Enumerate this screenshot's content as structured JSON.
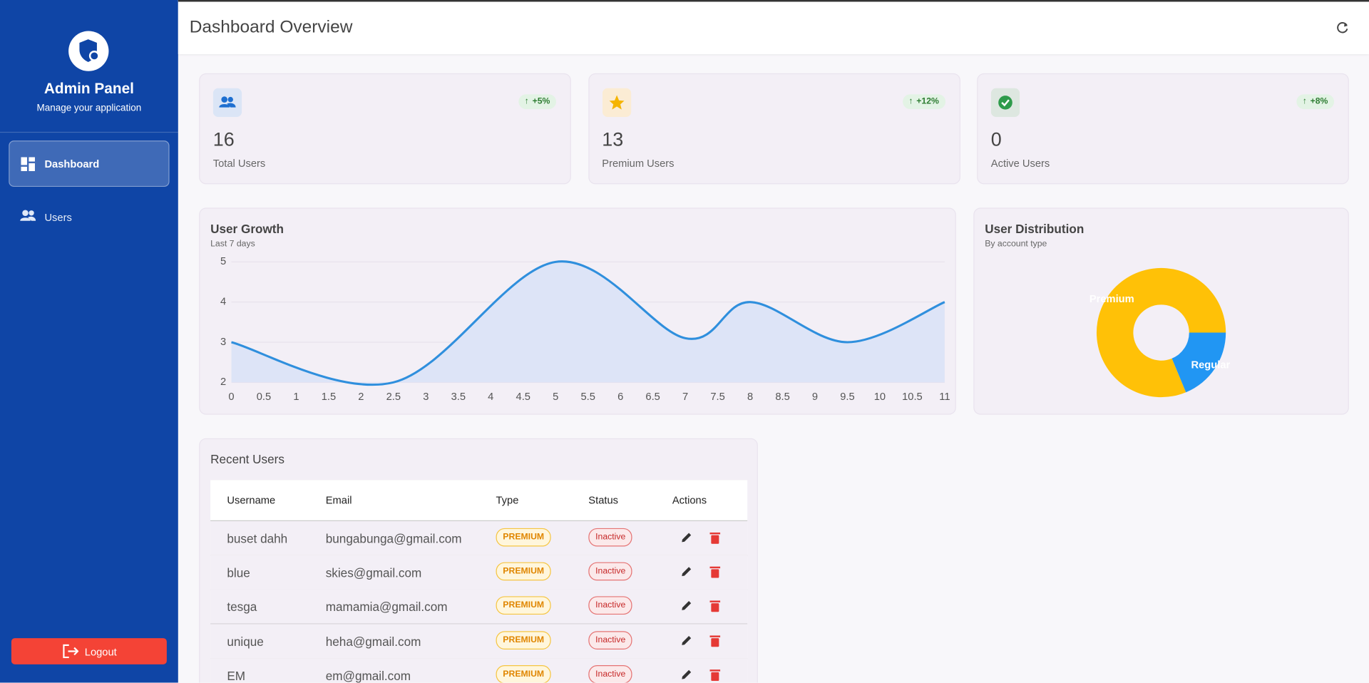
{
  "sidebar": {
    "title": "Admin Panel",
    "subtitle": "Manage your application",
    "nav": [
      "Dashboard",
      "Users"
    ],
    "logout": "Logout"
  },
  "header": {
    "title": "Dashboard Overview"
  },
  "stats": [
    {
      "value": 16,
      "label": "Total Users",
      "change": "+5%"
    },
    {
      "value": 13,
      "label": "Premium Users",
      "change": "+12%"
    },
    {
      "value": 0,
      "label": "Active Users",
      "change": "+8%"
    }
  ],
  "chart_data": [
    {
      "type": "line",
      "title": "User Growth",
      "subtitle": "Last 7 days",
      "x": [
        0,
        2.5,
        5,
        7,
        8,
        9.5,
        11
      ],
      "series": [
        {
          "color": "#2f8fdd",
          "fill": "#dde4f7",
          "values": [
            3,
            2,
            5,
            3.1,
            4,
            3,
            4
          ]
        }
      ],
      "xlim": [
        0,
        11
      ],
      "ylim": [
        2,
        5
      ],
      "xticks": [
        0,
        0.5,
        1,
        1.5,
        2,
        2.5,
        3,
        3.5,
        4,
        4.5,
        5,
        5.5,
        6,
        6.5,
        7,
        7.5,
        8,
        8.5,
        9,
        9.5,
        10,
        10.5,
        11
      ],
      "yticks": [
        2,
        3,
        4,
        5
      ],
      "grid": true
    },
    {
      "type": "pie",
      "title": "User Distribution",
      "subtitle": "By account type",
      "categories": [
        "Premium",
        "Regular"
      ],
      "values": [
        13,
        3
      ],
      "colors": [
        "#ffc107",
        "#2196f3"
      ],
      "donut": true
    }
  ],
  "table": {
    "title": "Recent Users",
    "columns": [
      "Username",
      "Email",
      "Type",
      "Status",
      "Actions"
    ],
    "rows": [
      [
        "buset dahh",
        "bungabunga@gmail.com",
        "PREMIUM",
        "Inactive"
      ],
      [
        "blue",
        "skies@gmail.com",
        "PREMIUM",
        "Inactive"
      ],
      [
        "tesga",
        "mamamia@gmail.com",
        "PREMIUM",
        "Inactive"
      ],
      [
        "unique",
        "heha@gmail.com",
        "PREMIUM",
        "Inactive"
      ],
      [
        "EM",
        "em@gmail.com",
        "PREMIUM",
        "Inactive"
      ]
    ]
  }
}
